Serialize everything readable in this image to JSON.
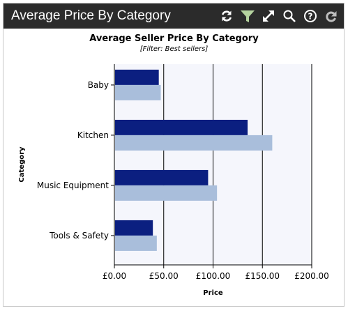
{
  "widget": {
    "title": "Average Price By Category",
    "toolbar": [
      {
        "name": "refresh-icon"
      },
      {
        "name": "filter-icon"
      },
      {
        "name": "expand-icon"
      },
      {
        "name": "search-icon"
      },
      {
        "name": "help-icon"
      },
      {
        "name": "redo-icon"
      }
    ]
  },
  "chart_data": {
    "type": "bar",
    "orientation": "horizontal",
    "title": "Average Seller Price By Category",
    "subtitle": "[Filter: Best sellers]",
    "xlabel": "Price",
    "ylabel": "Category",
    "categories": [
      "Baby",
      "Kitchen",
      "Music Equipment",
      "Tools & Safety"
    ],
    "series": [
      {
        "color": "#0b1f80",
        "values": [
          45,
          135,
          95,
          39
        ]
      },
      {
        "color": "#a9bedb",
        "values": [
          47,
          160,
          104,
          43
        ]
      }
    ],
    "xlim": [
      0,
      200
    ],
    "xticks": [
      0,
      50,
      100,
      150,
      200
    ],
    "xtick_labels": [
      "£0.00",
      "£50.00",
      "£100.00",
      "£150.00",
      "£200.00"
    ],
    "grid": "vertical",
    "plot_background": "#f5f6fc",
    "legend": "none"
  }
}
